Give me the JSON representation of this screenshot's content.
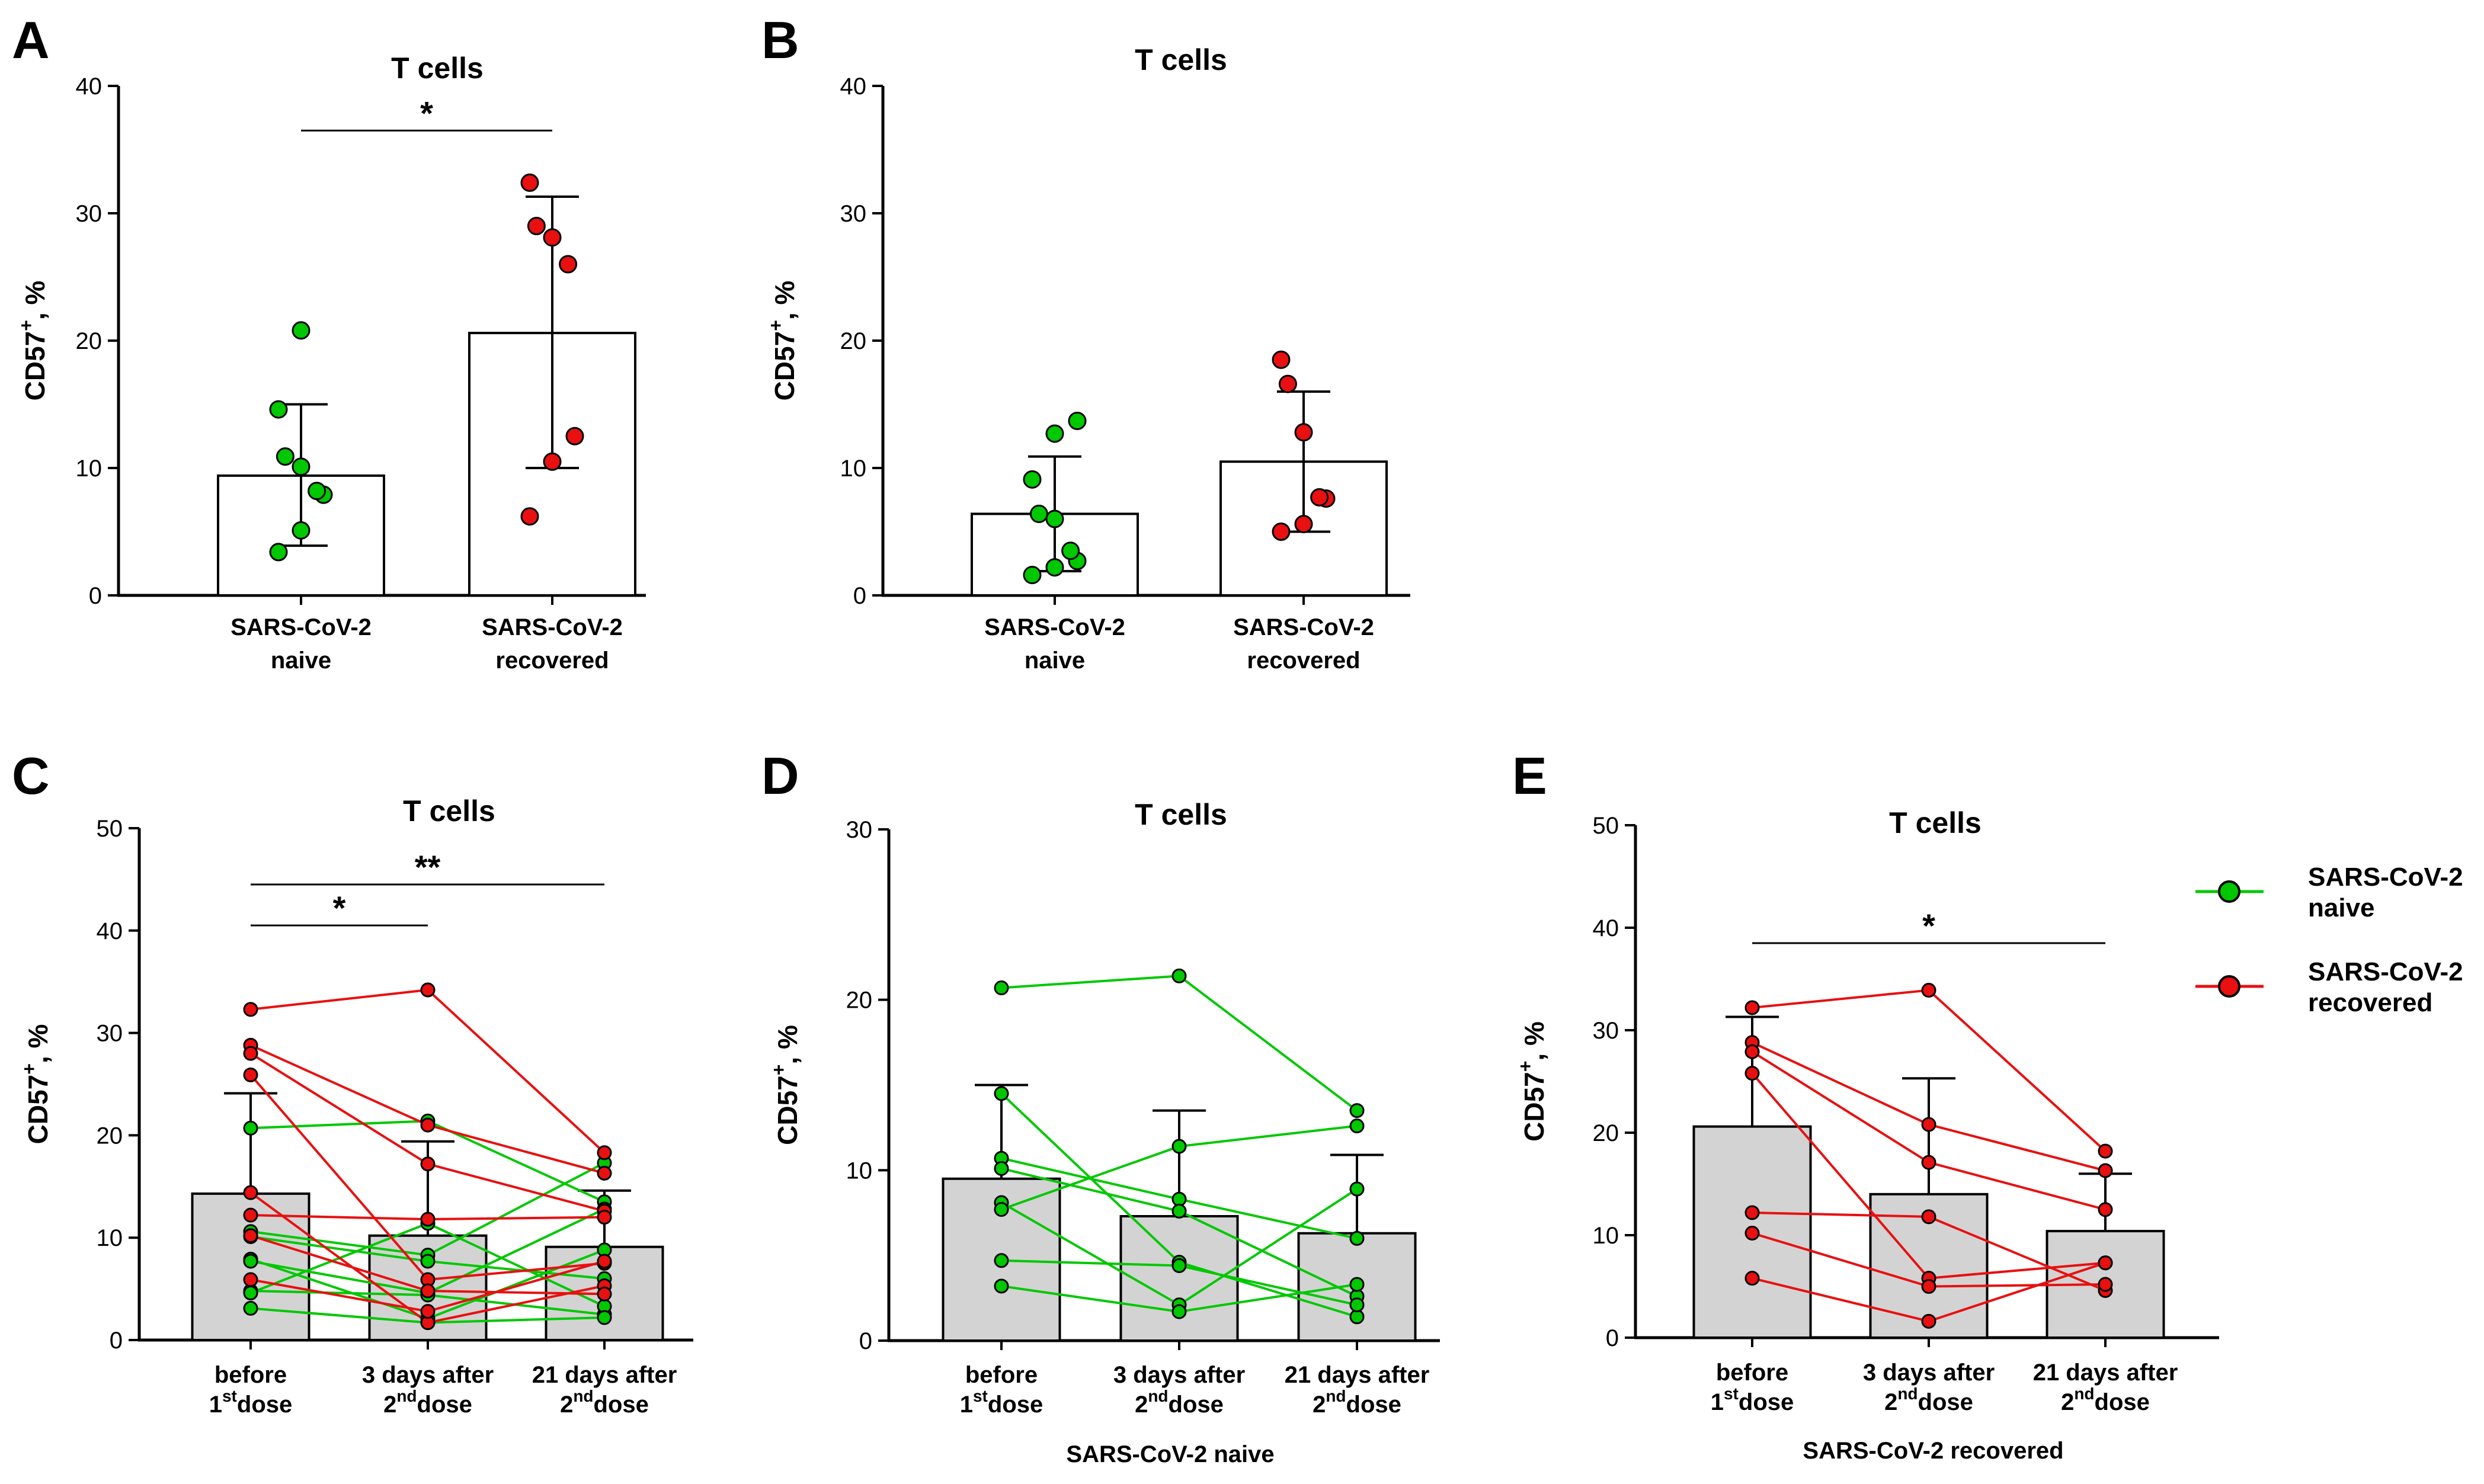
{
  "colors": {
    "naive": "#00c800",
    "recovered": "#e81010",
    "bar_gray": "#d3d3d3",
    "bar_white": "#ffffff",
    "axis": "#000000"
  },
  "legend": {
    "entries": [
      {
        "line1": "SARS-CoV-2",
        "line2": "naive",
        "color": "#00c800"
      },
      {
        "line1": "SARS-CoV-2",
        "line2": "recovered",
        "color": "#e81010"
      }
    ]
  },
  "chart_data": [
    {
      "panel": "A",
      "type": "bar",
      "title": "T cells",
      "ylabel": "CD57+, %",
      "ylim": [
        0,
        40
      ],
      "yticks": [
        "0",
        "10",
        "20",
        "30",
        "40"
      ],
      "xlabel": "",
      "categories": [
        {
          "line1": "SARS-CoV-2",
          "line2": "naive"
        },
        {
          "line1": "SARS-CoV-2",
          "line2": "recovered"
        }
      ],
      "bars": [
        {
          "mean": 9.4,
          "sd_low": 3.9,
          "sd_high": 15.0,
          "fill": "white",
          "points": [
            20.8,
            14.6,
            10.9,
            10.1,
            8.2,
            7.9,
            5.1,
            3.4
          ],
          "group": "naive"
        },
        {
          "mean": 20.6,
          "sd_low": 10.0,
          "sd_high": 31.3,
          "fill": "white",
          "points": [
            32.4,
            29.0,
            28.1,
            26.0,
            12.5,
            10.5,
            6.2
          ],
          "group": "recovered"
        }
      ],
      "significance": [
        {
          "from": 0,
          "to": 1,
          "label": "*"
        }
      ]
    },
    {
      "panel": "B",
      "type": "bar",
      "title": "T cells",
      "ylabel": "CD57+, %",
      "ylim": [
        0,
        40
      ],
      "yticks": [
        "0",
        "10",
        "20",
        "30",
        "40"
      ],
      "xlabel": "",
      "categories": [
        {
          "line1": "SARS-CoV-2",
          "line2": "naive"
        },
        {
          "line1": "SARS-CoV-2",
          "line2": "recovered"
        }
      ],
      "bars": [
        {
          "mean": 6.4,
          "sd_low": 1.9,
          "sd_high": 10.9,
          "fill": "white",
          "points": [
            13.7,
            12.7,
            9.1,
            6.4,
            6.0,
            3.5,
            2.7,
            2.2,
            1.6
          ],
          "group": "naive"
        },
        {
          "mean": 10.5,
          "sd_low": 5.0,
          "sd_high": 16.0,
          "fill": "white",
          "points": [
            18.5,
            16.6,
            12.8,
            7.7,
            7.6,
            5.6,
            5.0
          ],
          "group": "recovered"
        }
      ],
      "significance": []
    },
    {
      "panel": "C",
      "type": "bar",
      "title": "T cells",
      "ylabel": "CD57+, %",
      "ylim": [
        0,
        50
      ],
      "yticks": [
        "0",
        "10",
        "20",
        "30",
        "40",
        "50"
      ],
      "xlabel": "",
      "categories": [
        {
          "line1": "before",
          "pre": "1",
          "sup": "st",
          "post": "dose"
        },
        {
          "line1": "3 days after",
          "pre": "2",
          "sup": "nd",
          "post": "dose"
        },
        {
          "line1": "21 days after",
          "pre": "2",
          "sup": "nd",
          "post": "dose"
        }
      ],
      "bars": [
        {
          "mean": 14.3,
          "sd_low": 0,
          "sd_high": 24.1,
          "fill": "gray"
        },
        {
          "mean": 10.2,
          "sd_low": 0,
          "sd_high": 19.4,
          "fill": "gray"
        },
        {
          "mean": 9.1,
          "sd_low": 0,
          "sd_high": 14.6,
          "fill": "gray"
        }
      ],
      "paired": [
        {
          "group": "naive",
          "values": [
            20.7,
            21.4,
            13.5
          ]
        },
        {
          "group": "naive",
          "values": [
            10.6,
            8.3,
            17.3
          ]
        },
        {
          "group": "naive",
          "values": [
            10.1,
            7.7,
            6.0
          ]
        },
        {
          "group": "naive",
          "values": [
            7.9,
            2.1,
            8.8
          ]
        },
        {
          "group": "naive",
          "values": [
            7.7,
            4.6,
            12.8
          ]
        },
        {
          "group": "naive",
          "values": [
            4.8,
            4.4,
            2.5
          ]
        },
        {
          "group": "naive",
          "values": [
            4.6,
            11.4,
            3.3
          ]
        },
        {
          "group": "naive",
          "values": [
            3.1,
            1.7,
            2.2
          ]
        },
        {
          "group": "recovered",
          "values": [
            32.3,
            34.2,
            18.3
          ]
        },
        {
          "group": "recovered",
          "values": [
            28.8,
            21.0,
            16.3
          ]
        },
        {
          "group": "recovered",
          "values": [
            28.0,
            17.2,
            12.6
          ]
        },
        {
          "group": "recovered",
          "values": [
            25.9,
            5.9,
            7.5
          ]
        },
        {
          "group": "recovered",
          "values": [
            14.4,
            1.7,
            5.3
          ]
        },
        {
          "group": "recovered",
          "values": [
            12.2,
            11.8,
            12.0
          ]
        },
        {
          "group": "recovered",
          "values": [
            10.2,
            4.8,
            4.5
          ]
        },
        {
          "group": "recovered",
          "values": [
            5.9,
            2.8,
            7.7
          ]
        }
      ],
      "significance": [
        {
          "from": 0,
          "to": 2,
          "label": "**",
          "y": 44.5
        },
        {
          "from": 0,
          "to": 1,
          "label": "*",
          "y": 40.5
        }
      ]
    },
    {
      "panel": "D",
      "type": "bar",
      "title": "T cells",
      "ylabel": "CD57+, %",
      "ylim": [
        0,
        30
      ],
      "yticks": [
        "0",
        "10",
        "20",
        "30"
      ],
      "xlabel": "SARS-CoV-2 naive",
      "categories": [
        {
          "line1": "before",
          "pre": "1",
          "sup": "st",
          "post": "dose"
        },
        {
          "line1": "3 days after",
          "pre": "2",
          "sup": "nd",
          "post": "dose"
        },
        {
          "line1": "21 days after",
          "pre": "2",
          "sup": "nd",
          "post": "dose"
        }
      ],
      "bars": [
        {
          "mean": 9.5,
          "sd_low": 0,
          "sd_high": 15.0,
          "fill": "gray"
        },
        {
          "mean": 7.3,
          "sd_low": 0,
          "sd_high": 13.5,
          "fill": "gray"
        },
        {
          "mean": 6.3,
          "sd_low": 0,
          "sd_high": 10.9,
          "fill": "gray"
        }
      ],
      "paired": [
        {
          "group": "naive",
          "values": [
            20.7,
            21.4,
            13.5
          ]
        },
        {
          "group": "naive",
          "values": [
            14.5,
            4.6,
            1.4
          ]
        },
        {
          "group": "naive",
          "values": [
            10.7,
            8.3,
            6.0
          ]
        },
        {
          "group": "naive",
          "values": [
            10.1,
            7.6,
            2.6
          ]
        },
        {
          "group": "naive",
          "values": [
            8.1,
            2.1,
            8.9
          ]
        },
        {
          "group": "naive",
          "values": [
            7.7,
            11.4,
            12.6
          ]
        },
        {
          "group": "naive",
          "values": [
            4.7,
            4.4,
            2.1
          ]
        },
        {
          "group": "naive",
          "values": [
            3.2,
            1.7,
            3.3
          ]
        }
      ],
      "significance": []
    },
    {
      "panel": "E",
      "type": "bar",
      "title": "T cells",
      "ylabel": "CD57+, %",
      "ylim": [
        0,
        50
      ],
      "yticks": [
        "0",
        "10",
        "20",
        "30",
        "40",
        "50"
      ],
      "xlabel": "SARS-CoV-2 recovered",
      "categories": [
        {
          "line1": "before",
          "pre": "1",
          "sup": "st",
          "post": "dose"
        },
        {
          "line1": "3 days after",
          "pre": "2",
          "sup": "nd",
          "post": "dose"
        },
        {
          "line1": "21 days after",
          "pre": "2",
          "sup": "nd",
          "post": "dose"
        }
      ],
      "bars": [
        {
          "mean": 20.6,
          "sd_low": 0,
          "sd_high": 31.3,
          "fill": "gray"
        },
        {
          "mean": 14.0,
          "sd_low": 0,
          "sd_high": 25.3,
          "fill": "gray"
        },
        {
          "mean": 10.4,
          "sd_low": 0,
          "sd_high": 16.0,
          "fill": "gray"
        }
      ],
      "paired": [
        {
          "group": "recovered",
          "values": [
            32.2,
            33.9,
            18.2
          ]
        },
        {
          "group": "recovered",
          "values": [
            28.8,
            20.8,
            16.3
          ]
        },
        {
          "group": "recovered",
          "values": [
            27.9,
            17.1,
            12.5
          ]
        },
        {
          "group": "recovered",
          "values": [
            25.8,
            5.8,
            7.3
          ]
        },
        {
          "group": "recovered",
          "values": [
            12.2,
            11.8,
            4.6
          ]
        },
        {
          "group": "recovered",
          "values": [
            10.2,
            5.0,
            5.2
          ]
        },
        {
          "group": "recovered",
          "values": [
            5.8,
            1.6,
            7.3
          ]
        }
      ],
      "significance": [
        {
          "from": 0,
          "to": 2,
          "label": "*",
          "y": 38.5
        }
      ]
    }
  ]
}
